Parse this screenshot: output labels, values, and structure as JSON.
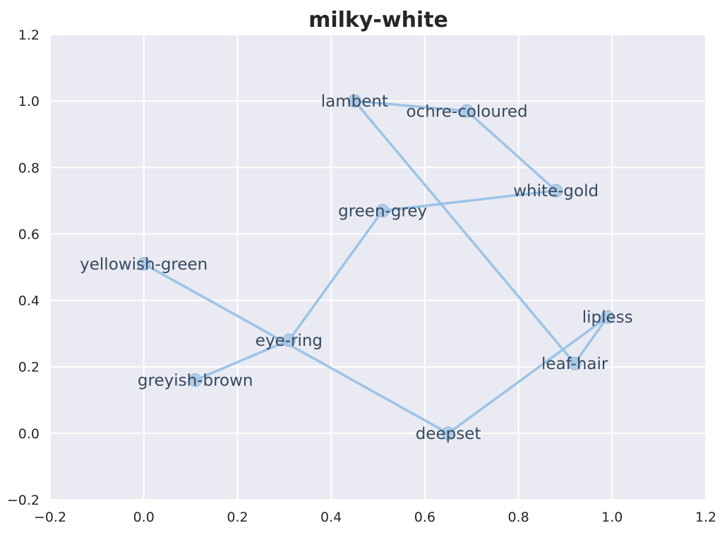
{
  "chart_data": {
    "type": "scatter",
    "title": "milky-white",
    "xlabel": "",
    "ylabel": "",
    "xlim": [
      -0.2,
      1.2
    ],
    "ylim": [
      -0.2,
      1.2
    ],
    "xticks": [
      "−0.2",
      "0.0",
      "0.2",
      "0.4",
      "0.6",
      "0.8",
      "1.0",
      "1.2"
    ],
    "yticks": [
      "−0.2",
      "0.0",
      "0.2",
      "0.4",
      "0.6",
      "0.8",
      "1.0",
      "1.2"
    ],
    "grid": true,
    "colors": {
      "background": "#eaeaf2",
      "grid": "#ffffff",
      "line": "#92c0e6",
      "marker": "#a4c8e6",
      "label": "#34495e"
    },
    "points": [
      {
        "label": "yellowish-green",
        "x": 0.0,
        "y": 0.51
      },
      {
        "label": "deepset",
        "x": 0.65,
        "y": 0.0
      },
      {
        "label": "lipless",
        "x": 0.99,
        "y": 0.35
      },
      {
        "label": "leaf-hair",
        "x": 0.92,
        "y": 0.21
      },
      {
        "label": "white-gold",
        "x": 0.88,
        "y": 0.73
      },
      {
        "label": "lambent",
        "x": 0.45,
        "y": 1.0
      },
      {
        "label": "ochre-coloured",
        "x": 0.69,
        "y": 0.97
      },
      {
        "label": "green-grey",
        "x": 0.51,
        "y": 0.67
      },
      {
        "label": "eye-ring",
        "x": 0.31,
        "y": 0.28
      },
      {
        "label": "greyish-brown",
        "x": 0.11,
        "y": 0.16
      }
    ],
    "path_order": [
      9,
      8,
      7,
      4,
      6,
      5,
      3,
      2,
      1,
      0
    ]
  }
}
